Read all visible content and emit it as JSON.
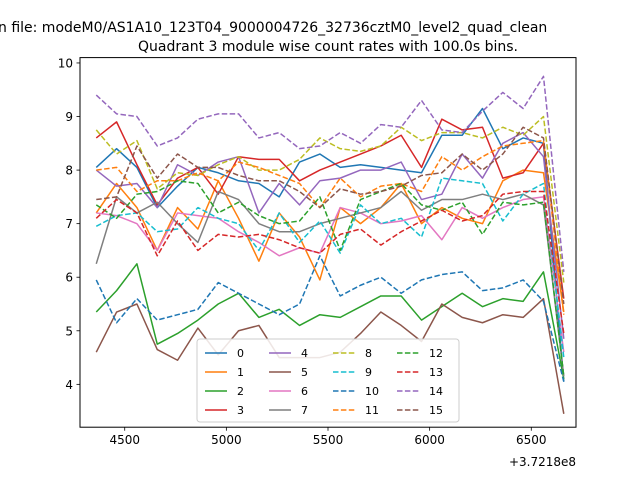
{
  "chart_data": {
    "type": "line",
    "suptitle": "n file: modeM0/AS1A10_123T04_9000004726_32736cztM0_level2_quad_clean",
    "title": "Quadrant 3 module wise count rates with 100.0s bins.",
    "xlabel": "",
    "ylabel": "",
    "x_offset_label": "+3.7218e8",
    "xlim": [
      4280,
      6720
    ],
    "ylim": [
      3.2,
      10.1
    ],
    "xticks": [
      4500,
      5000,
      5500,
      6000,
      6500
    ],
    "yticks": [
      4,
      5,
      6,
      7,
      8,
      9,
      10
    ],
    "grid": false,
    "legend": {
      "placement": "lower-center",
      "columns": 4
    },
    "x": [
      4360,
      4460,
      4560,
      4660,
      4760,
      4860,
      4960,
      5060,
      5160,
      5260,
      5360,
      5460,
      5560,
      5660,
      5760,
      5860,
      5960,
      6060,
      6160,
      6260,
      6360,
      6460,
      6560,
      6660
    ],
    "series": [
      {
        "name": "0",
        "color": "#1f77b4",
        "dash": "solid",
        "values": [
          8.05,
          8.4,
          8.05,
          7.3,
          7.7,
          8.05,
          7.95,
          7.8,
          7.75,
          7.5,
          8.15,
          8.3,
          8.05,
          8.1,
          8.05,
          8.0,
          7.95,
          8.65,
          8.65,
          9.15,
          8.4,
          8.6,
          8.5,
          4.05
        ]
      },
      {
        "name": "1",
        "color": "#ff7f0e",
        "dash": "solid",
        "values": [
          7.2,
          7.75,
          7.3,
          6.5,
          7.3,
          6.9,
          7.8,
          7.1,
          6.3,
          7.2,
          6.75,
          5.95,
          7.3,
          7.0,
          7.3,
          7.75,
          7.0,
          7.3,
          7.1,
          7.0,
          7.8,
          8.0,
          7.95,
          5.35
        ]
      },
      {
        "name": "2",
        "color": "#2ca02c",
        "dash": "solid",
        "values": [
          5.35,
          5.75,
          6.25,
          4.75,
          4.95,
          5.2,
          5.5,
          5.7,
          5.25,
          5.4,
          5.1,
          5.3,
          5.25,
          5.45,
          5.65,
          5.65,
          5.2,
          5.45,
          5.7,
          5.45,
          5.6,
          5.55,
          6.1,
          4.1
        ]
      },
      {
        "name": "3",
        "color": "#d62728",
        "dash": "solid",
        "values": [
          8.6,
          8.9,
          8.1,
          7.35,
          7.85,
          8.05,
          7.55,
          8.25,
          8.2,
          8.2,
          7.8,
          8.0,
          8.15,
          8.3,
          8.45,
          8.65,
          8.05,
          8.95,
          8.75,
          8.8,
          7.85,
          7.95,
          8.5,
          5.6
        ]
      },
      {
        "name": "4",
        "color": "#9467bd",
        "dash": "solid",
        "values": [
          8.0,
          7.7,
          7.75,
          7.3,
          8.1,
          7.9,
          8.15,
          8.25,
          7.2,
          7.75,
          7.35,
          7.8,
          7.85,
          8.0,
          8.0,
          8.15,
          7.45,
          7.55,
          8.3,
          7.85,
          8.5,
          8.7,
          8.25,
          4.85
        ]
      },
      {
        "name": "5",
        "color": "#8c564b",
        "dash": "solid",
        "values": [
          4.6,
          5.35,
          5.5,
          4.65,
          4.45,
          5.05,
          4.55,
          5.0,
          5.1,
          4.5,
          4.5,
          4.5,
          4.6,
          4.95,
          5.35,
          5.1,
          4.8,
          5.5,
          5.25,
          5.15,
          5.3,
          5.25,
          5.6,
          3.45
        ]
      },
      {
        "name": "6",
        "color": "#e377c2",
        "dash": "solid",
        "values": [
          7.2,
          7.15,
          7.0,
          6.5,
          7.2,
          7.15,
          7.1,
          6.85,
          6.65,
          6.4,
          6.55,
          6.45,
          7.3,
          7.2,
          7.0,
          7.05,
          7.15,
          6.7,
          7.3,
          7.1,
          7.3,
          7.45,
          7.5,
          4.6
        ]
      },
      {
        "name": "7",
        "color": "#7f7f7f",
        "dash": "solid",
        "values": [
          6.25,
          7.5,
          7.2,
          7.4,
          7.0,
          6.65,
          7.6,
          7.45,
          7.0,
          6.85,
          6.85,
          7.0,
          7.1,
          7.2,
          7.3,
          7.6,
          7.25,
          7.45,
          7.45,
          7.55,
          7.45,
          7.55,
          7.35,
          4.15
        ]
      },
      {
        "name": "8",
        "color": "#bcbd22",
        "dash": "dashed",
        "values": [
          8.75,
          8.3,
          8.55,
          7.65,
          7.95,
          7.9,
          8.1,
          8.25,
          8.0,
          8.0,
          8.2,
          8.6,
          8.4,
          8.35,
          8.45,
          8.8,
          8.55,
          8.7,
          8.7,
          8.6,
          8.8,
          8.65,
          9.0,
          5.9
        ]
      },
      {
        "name": "9",
        "color": "#17becf",
        "dash": "dashed",
        "values": [
          6.95,
          7.15,
          7.2,
          6.85,
          6.9,
          7.3,
          7.1,
          7.0,
          6.5,
          7.2,
          6.65,
          7.05,
          6.45,
          7.35,
          7.0,
          7.1,
          6.75,
          7.85,
          7.8,
          7.75,
          7.05,
          7.55,
          7.75,
          4.5
        ]
      },
      {
        "name": "10",
        "color": "#1f77b4",
        "dash": "dashed",
        "values": [
          5.95,
          5.15,
          5.6,
          5.2,
          5.3,
          5.4,
          5.9,
          5.7,
          5.5,
          5.3,
          5.5,
          6.4,
          5.65,
          5.85,
          6.0,
          5.7,
          5.95,
          6.05,
          6.1,
          5.75,
          5.8,
          5.95,
          5.55,
          4.05
        ]
      },
      {
        "name": "11",
        "color": "#ff7f0e",
        "dash": "dashed",
        "values": [
          8.0,
          8.05,
          7.6,
          7.8,
          7.8,
          7.95,
          7.8,
          8.15,
          8.05,
          7.9,
          7.75,
          7.3,
          7.85,
          7.5,
          7.7,
          7.75,
          7.6,
          8.25,
          8.0,
          8.25,
          8.45,
          8.5,
          8.55,
          5.3
        ]
      },
      {
        "name": "12",
        "color": "#2ca02c",
        "dash": "dashed",
        "values": [
          7.35,
          7.1,
          7.55,
          7.6,
          7.8,
          7.75,
          7.2,
          7.4,
          7.15,
          7.0,
          7.05,
          7.5,
          6.5,
          7.45,
          7.6,
          7.75,
          7.35,
          7.25,
          7.4,
          6.8,
          7.4,
          7.35,
          7.4,
          4.15
        ]
      },
      {
        "name": "13",
        "color": "#d62728",
        "dash": "dashed",
        "values": [
          7.1,
          7.45,
          7.2,
          6.4,
          7.05,
          6.5,
          6.8,
          6.75,
          6.8,
          6.7,
          6.55,
          6.45,
          6.8,
          6.9,
          6.6,
          6.85,
          7.05,
          7.25,
          7.05,
          7.15,
          7.55,
          7.6,
          7.6,
          4.95
        ]
      },
      {
        "name": "14",
        "color": "#9467bd",
        "dash": "dashed",
        "values": [
          9.4,
          9.05,
          9.0,
          8.45,
          8.6,
          8.95,
          9.05,
          9.05,
          8.6,
          8.7,
          8.4,
          8.45,
          8.7,
          8.5,
          8.85,
          8.8,
          9.3,
          8.75,
          8.7,
          9.1,
          9.45,
          9.15,
          9.75,
          6.1
        ]
      },
      {
        "name": "15",
        "color": "#8c564b",
        "dash": "dashed",
        "values": [
          7.45,
          7.5,
          8.45,
          7.85,
          8.3,
          8.05,
          8.05,
          7.9,
          7.8,
          7.8,
          7.6,
          7.3,
          7.65,
          7.55,
          7.6,
          7.7,
          7.9,
          7.95,
          8.3,
          8.0,
          8.3,
          8.8,
          8.6,
          5.5
        ]
      }
    ]
  }
}
